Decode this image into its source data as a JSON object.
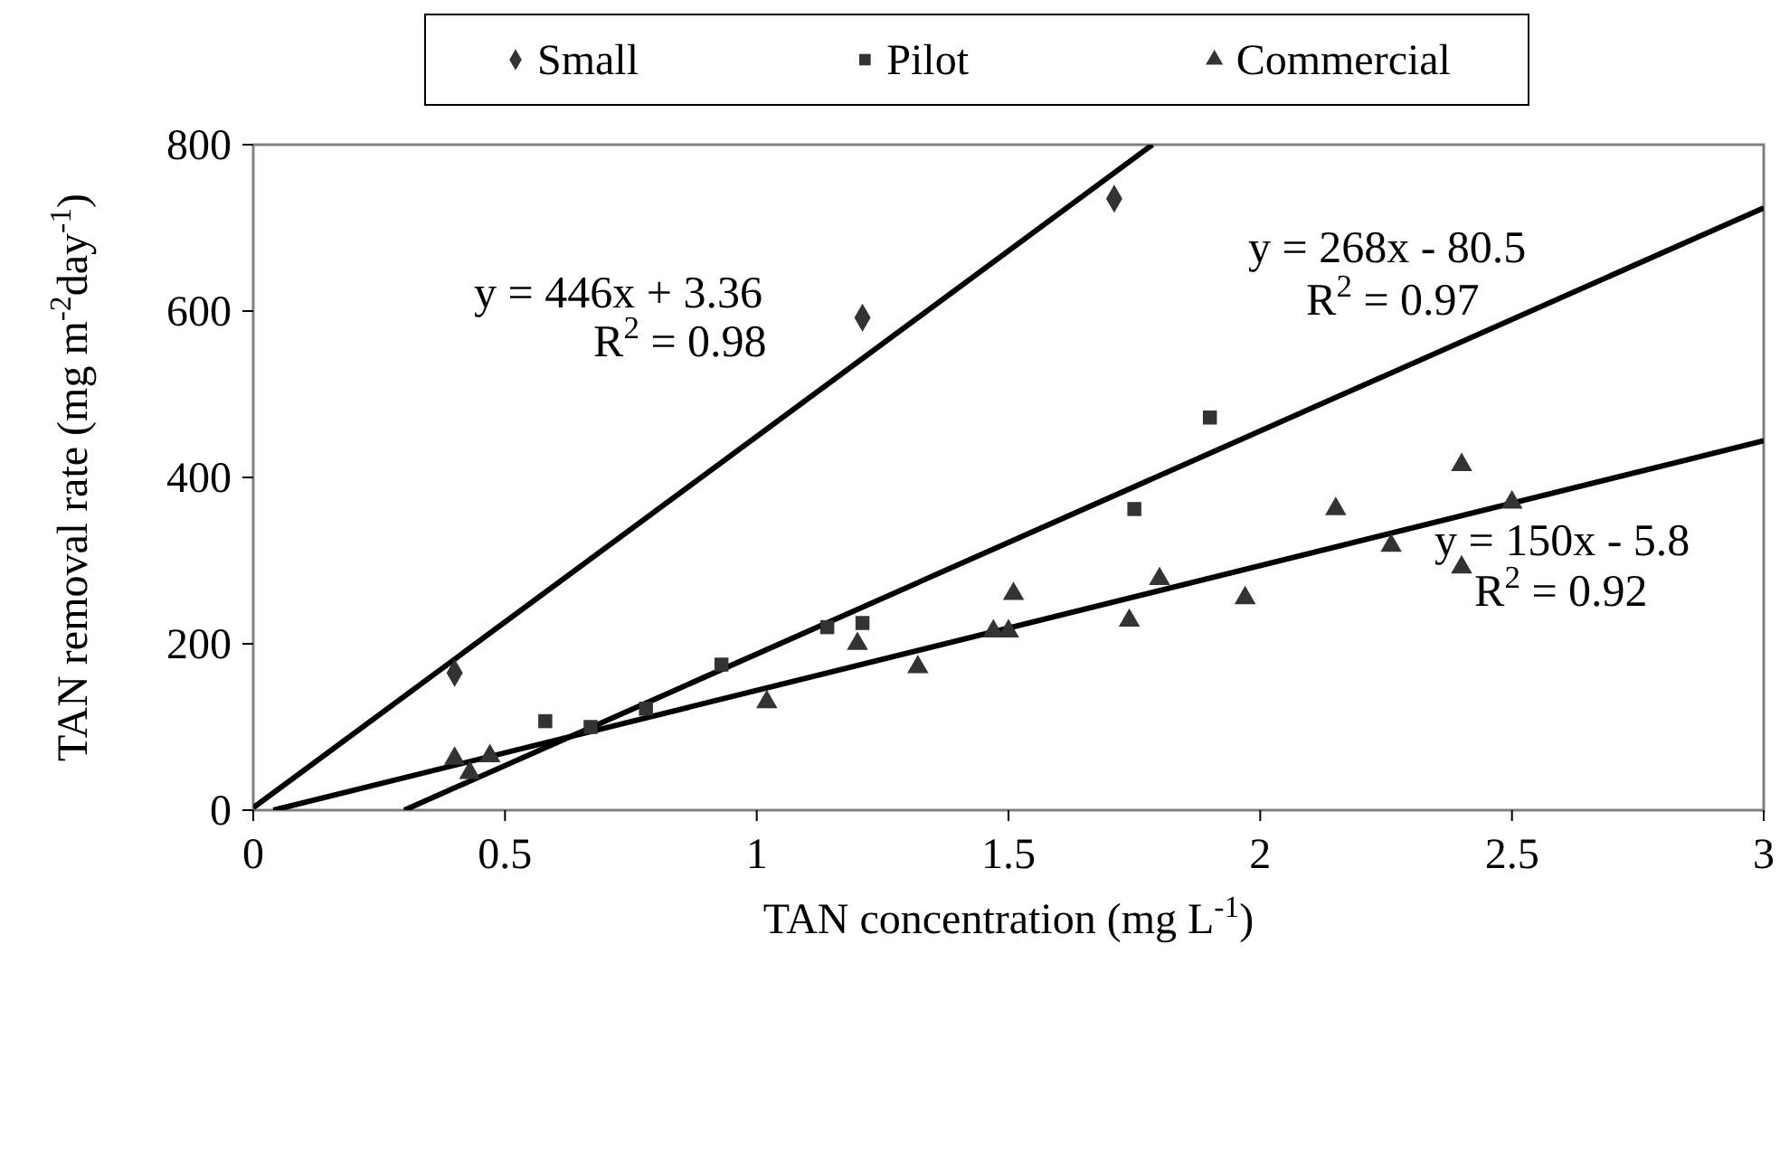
{
  "chart_data": {
    "type": "scatter",
    "xlabel": "TAN concentration (mg L$^{-1}$)",
    "ylabel": "TAN removal rate (mg m$^{-2}$day$^{-1}$)",
    "xlim": [
      0,
      3
    ],
    "ylim": [
      0,
      800
    ],
    "xticks": [
      0,
      0.5,
      1,
      1.5,
      2,
      2.5,
      3
    ],
    "yticks": [
      0,
      200,
      400,
      600,
      800
    ],
    "grid": false,
    "legend": "top",
    "series": [
      {
        "name": "Small",
        "color": "#333333",
        "marker": "diamond",
        "x": [
          0.4,
          1.21,
          1.71
        ],
        "values": [
          165,
          592,
          735
        ]
      },
      {
        "name": "Pilot",
        "color": "#333333",
        "marker": "square",
        "x": [
          0.58,
          0.67,
          0.78,
          0.93,
          1.14,
          1.21,
          1.75,
          1.9
        ],
        "values": [
          107,
          100,
          122,
          175,
          220,
          225,
          362,
          472
        ]
      },
      {
        "name": "Commercial",
        "color": "#333333",
        "marker": "triangle",
        "x": [
          0.4,
          0.43,
          0.47,
          1.02,
          1.2,
          1.32,
          1.47,
          1.5,
          1.51,
          1.74,
          1.8,
          1.97,
          2.15,
          2.26,
          2.4,
          2.4,
          2.5
        ],
        "values": [
          62,
          45,
          65,
          130,
          200,
          172,
          215,
          215,
          260,
          228,
          278,
          255,
          362,
          318,
          415,
          292,
          370
        ]
      },
      {
        "type": "line",
        "color": "#000000",
        "x": [
          0,
          1.786
        ],
        "values": [
          3,
          800
        ]
      },
      {
        "type": "line",
        "color": "#000000",
        "x": [
          0.3,
          3
        ],
        "values": [
          0,
          724
        ]
      },
      {
        "type": "line",
        "color": "#000000",
        "x": [
          0.04,
          3
        ],
        "values": [
          0,
          444
        ]
      }
    ],
    "annotations": [
      "y = 446x + 3.36",
      "R$^{2}$ = 0.98",
      "y = 268x - 80.5",
      "R$^{2}$ = 0.97",
      "y = 150x - 5.8",
      "R$^{2}$ = 0.92"
    ]
  }
}
